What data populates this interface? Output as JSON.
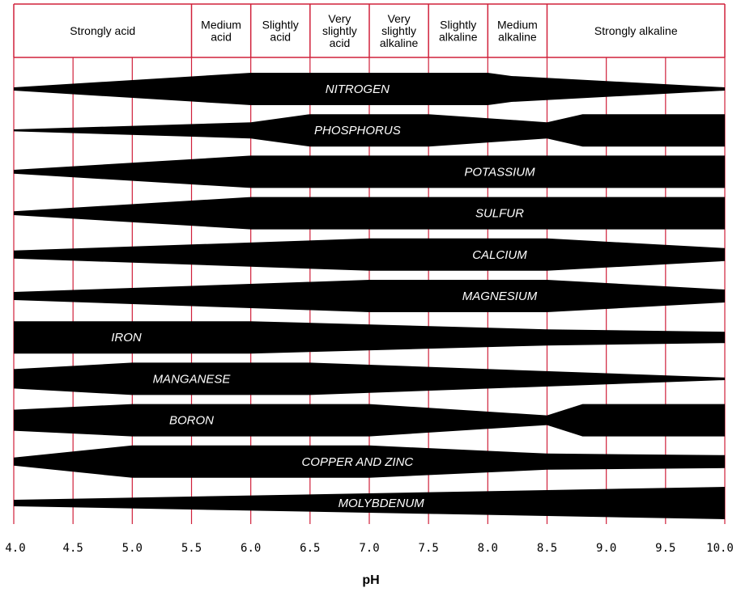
{
  "chart_data": {
    "type": "band",
    "xlabel": "pH",
    "xlim": [
      4.0,
      10.0
    ],
    "x_ticks": [
      "4.0",
      "4.5",
      "5.0",
      "5.5",
      "6.0",
      "6.5",
      "7.0",
      "7.5",
      "8.0",
      "8.5",
      "9.0",
      "9.5",
      "10.0"
    ],
    "ranges": [
      {
        "label": "Strongly acid",
        "from": 4.0,
        "to": 5.5
      },
      {
        "label": "Medium acid",
        "from": 5.5,
        "to": 6.0
      },
      {
        "label": "Slightly acid",
        "from": 6.0,
        "to": 6.5
      },
      {
        "label": "Very slightly acid",
        "from": 6.5,
        "to": 7.0
      },
      {
        "label": "Very slightly alkaline",
        "from": 7.0,
        "to": 7.5
      },
      {
        "label": "Slightly alkaline",
        "from": 7.5,
        "to": 8.0
      },
      {
        "label": "Medium alkaline",
        "from": 8.0,
        "to": 8.5
      },
      {
        "label": "Strongly alkaline",
        "from": 8.5,
        "to": 10.0
      }
    ],
    "grid_color": "#d0203a",
    "band_color": "#000000",
    "label_color": "#ffffff",
    "series": [
      {
        "name": "NITROGEN",
        "label_x": 6.9,
        "profile": [
          [
            4.0,
            0.1
          ],
          [
            6.0,
            1.0
          ],
          [
            8.0,
            1.0
          ],
          [
            8.2,
            0.8
          ],
          [
            10.0,
            0.1
          ]
        ]
      },
      {
        "name": "PHOSPHORUS",
        "label_x": 6.9,
        "profile": [
          [
            4.0,
            0.06
          ],
          [
            6.0,
            0.5
          ],
          [
            6.5,
            1.0
          ],
          [
            7.5,
            1.0
          ],
          [
            8.5,
            0.5
          ],
          [
            8.8,
            1.0
          ],
          [
            10.0,
            1.0
          ]
        ]
      },
      {
        "name": "POTASSIUM",
        "label_x": 8.1,
        "profile": [
          [
            4.0,
            0.12
          ],
          [
            6.0,
            1.0
          ],
          [
            10.0,
            1.0
          ]
        ]
      },
      {
        "name": "SULFUR",
        "label_x": 8.1,
        "profile": [
          [
            4.0,
            0.12
          ],
          [
            6.0,
            1.0
          ],
          [
            10.0,
            1.0
          ]
        ]
      },
      {
        "name": "CALCIUM",
        "label_x": 8.1,
        "profile": [
          [
            4.0,
            0.25
          ],
          [
            7.0,
            1.0
          ],
          [
            8.5,
            1.0
          ],
          [
            10.0,
            0.4
          ]
        ]
      },
      {
        "name": "MAGNESIUM",
        "label_x": 8.1,
        "profile": [
          [
            4.0,
            0.25
          ],
          [
            7.0,
            1.0
          ],
          [
            8.5,
            1.0
          ],
          [
            10.0,
            0.4
          ]
        ]
      },
      {
        "name": "IRON",
        "label_x": 4.95,
        "profile": [
          [
            4.0,
            1.0
          ],
          [
            6.0,
            1.0
          ],
          [
            8.5,
            0.5
          ],
          [
            10.0,
            0.35
          ]
        ]
      },
      {
        "name": "MANGANESE",
        "label_x": 5.5,
        "profile": [
          [
            4.0,
            0.6
          ],
          [
            5.0,
            1.0
          ],
          [
            6.5,
            1.0
          ],
          [
            10.0,
            0.08
          ]
        ]
      },
      {
        "name": "BORON",
        "label_x": 5.5,
        "profile": [
          [
            4.0,
            0.65
          ],
          [
            5.0,
            1.0
          ],
          [
            7.0,
            1.0
          ],
          [
            8.5,
            0.3
          ],
          [
            8.8,
            1.0
          ],
          [
            10.0,
            1.0
          ]
        ]
      },
      {
        "name": "COPPER AND ZINC",
        "label_x": 6.9,
        "profile": [
          [
            4.0,
            0.25
          ],
          [
            5.0,
            1.0
          ],
          [
            7.0,
            1.0
          ],
          [
            8.5,
            0.5
          ],
          [
            10.0,
            0.4
          ]
        ]
      },
      {
        "name": "MOLYBDENUM",
        "label_x": 7.1,
        "profile": [
          [
            4.0,
            0.2
          ],
          [
            10.0,
            1.0
          ]
        ]
      }
    ]
  }
}
